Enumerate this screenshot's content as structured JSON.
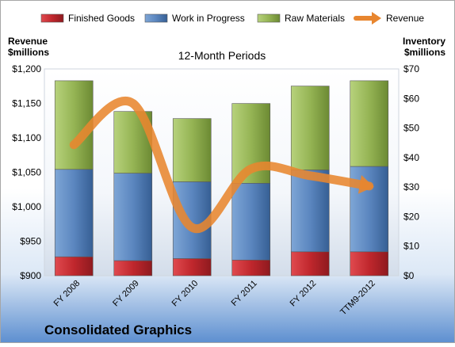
{
  "chart_data": {
    "type": "bar",
    "stacked": true,
    "title": "12-Month Periods",
    "company": "Consolidated Graphics",
    "left_axis_title": [
      "Revenue",
      "$millions"
    ],
    "right_axis_title": [
      "Inventory",
      "$millions"
    ],
    "categories": [
      "FY 2008",
      "FY 2009",
      "FY 2010",
      "FY 2011",
      "FY 2012",
      "TTM9-2012"
    ],
    "left_axis": {
      "min": 900,
      "max": 1200,
      "step": 50,
      "tick_labels": [
        "$900",
        "$950",
        "$1,000",
        "$1,050",
        "$1,100",
        "$1,150",
        "$1,200"
      ]
    },
    "right_axis": {
      "min": 0,
      "max": 70,
      "step": 10,
      "tick_labels": [
        "$0",
        "$10",
        "$20",
        "$30",
        "$40",
        "$50",
        "$60",
        "$70"
      ]
    },
    "series": [
      {
        "name": "Finished Goods",
        "axis": "right",
        "kind": "bar",
        "color": "#c0272d",
        "values": [
          6.4,
          5.1,
          5.8,
          5.3,
          8.1,
          8.1
        ]
      },
      {
        "name": "Work in Progress",
        "axis": "right",
        "kind": "bar",
        "color": "#4f81bd",
        "values": [
          29.6,
          29.6,
          26.0,
          26.0,
          27.7,
          28.9
        ]
      },
      {
        "name": "Raw Materials",
        "axis": "right",
        "kind": "bar",
        "color": "#9bbb59",
        "values": [
          30.0,
          20.9,
          21.4,
          27.0,
          28.4,
          29.0
        ]
      },
      {
        "name": "Revenue",
        "axis": "left",
        "kind": "line",
        "color": "#e8862f",
        "values": [
          1090,
          1150,
          970,
          1055,
          1045,
          1030
        ]
      }
    ],
    "grid": false,
    "legend": "top"
  }
}
